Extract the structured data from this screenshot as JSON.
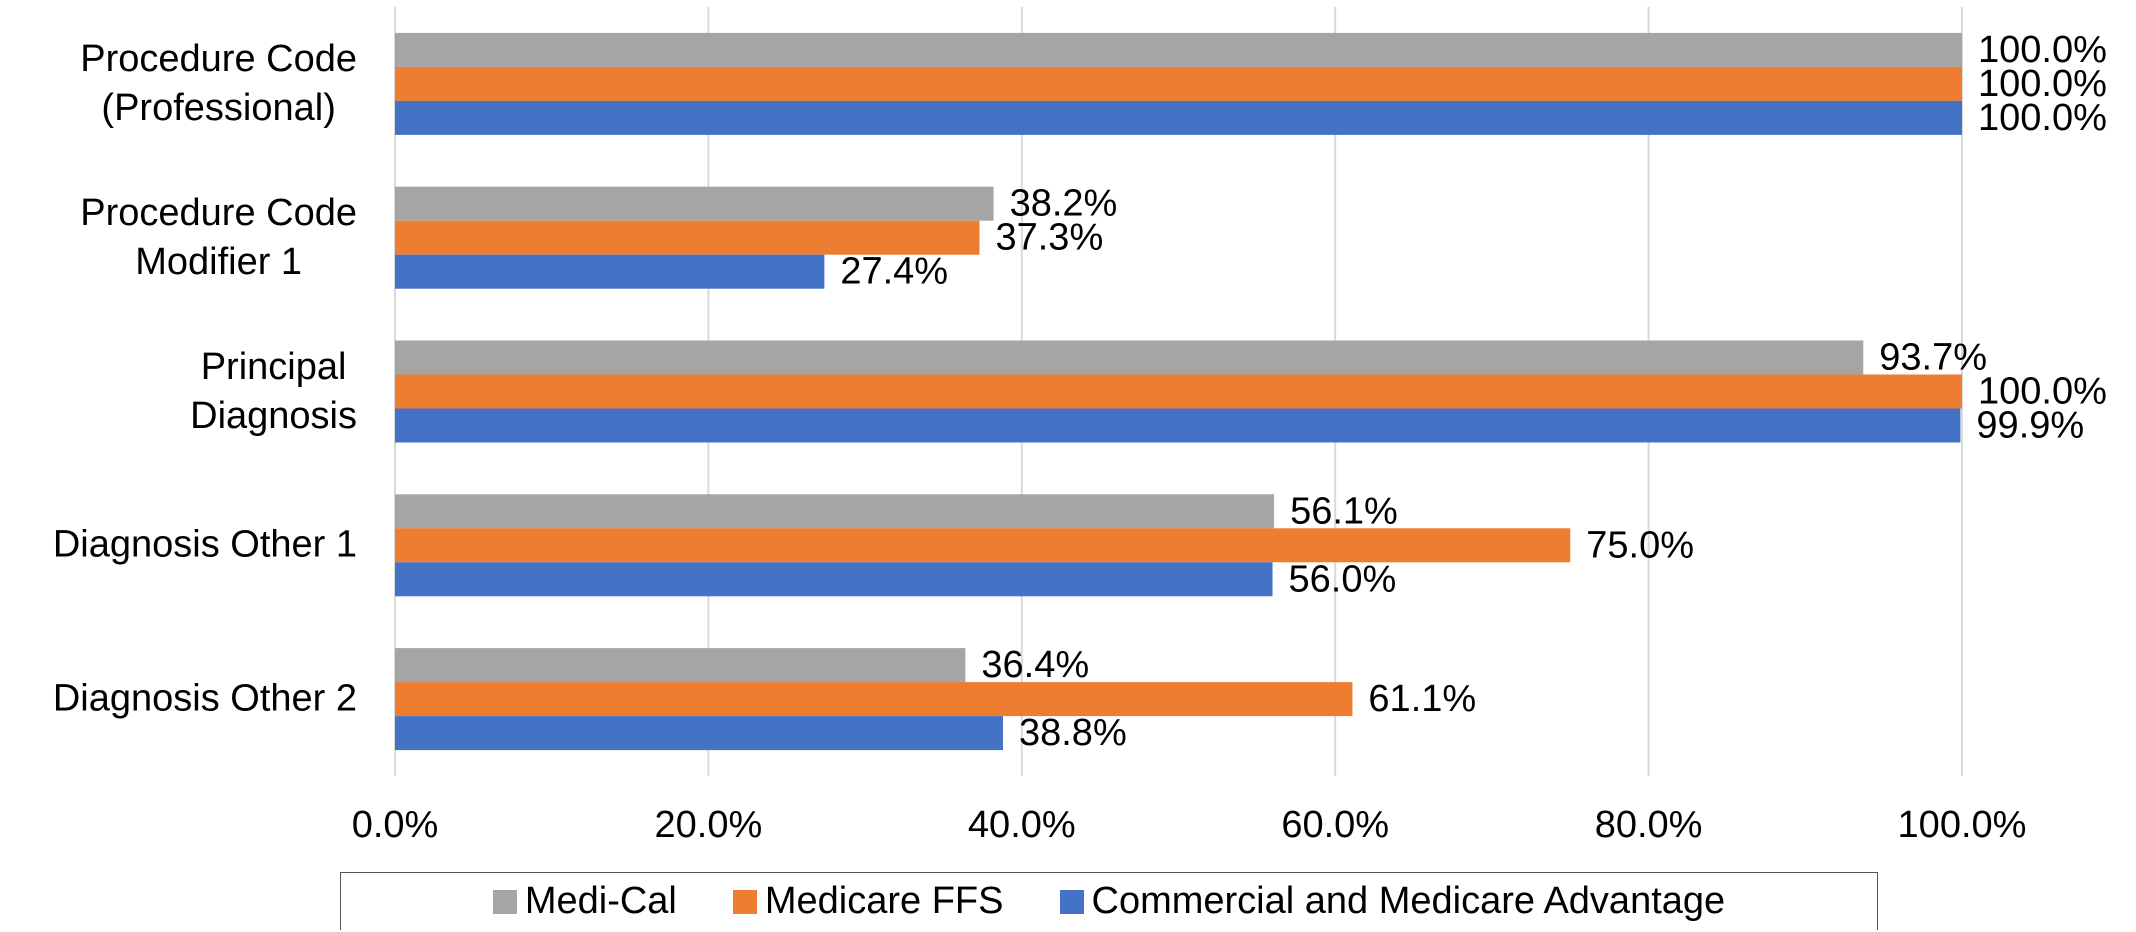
{
  "chart_data": {
    "type": "bar",
    "orientation": "horizontal",
    "categories": [
      "Procedure Code\n(Professional)",
      "Procedure Code\nModifier 1",
      "Principal\nDiagnosis",
      "Diagnosis Other 1",
      "Diagnosis Other 2"
    ],
    "series": [
      {
        "name": "Medi-Cal",
        "color": "#a5a5a5",
        "values": [
          100.0,
          38.2,
          93.7,
          56.1,
          36.4
        ],
        "value_labels": [
          "100.0%",
          "38.2%",
          "93.7%",
          "56.1%",
          "36.4%"
        ]
      },
      {
        "name": "Medicare FFS",
        "color": "#ed7d31",
        "values": [
          100.0,
          37.3,
          100.0,
          75.0,
          61.1
        ],
        "value_labels": [
          "100.0%",
          "37.3%",
          "100.0%",
          "75.0%",
          "61.1%"
        ]
      },
      {
        "name": "Commercial and Medicare Advantage",
        "color": "#4472c4",
        "values": [
          100.0,
          27.4,
          99.9,
          56.0,
          38.8
        ],
        "value_labels": [
          "100.0%",
          "27.4%",
          "99.9%",
          "56.0%",
          "38.8%"
        ]
      }
    ],
    "xlim": [
      0,
      100
    ],
    "xticks": [
      {
        "value": 0,
        "label": "0.0%"
      },
      {
        "value": 20,
        "label": "20.0%"
      },
      {
        "value": 40,
        "label": "40.0%"
      },
      {
        "value": 60,
        "label": "60.0%"
      },
      {
        "value": 80,
        "label": "80.0%"
      },
      {
        "value": 100,
        "label": "100.0%"
      }
    ],
    "grid": true,
    "legend": "bottom"
  }
}
